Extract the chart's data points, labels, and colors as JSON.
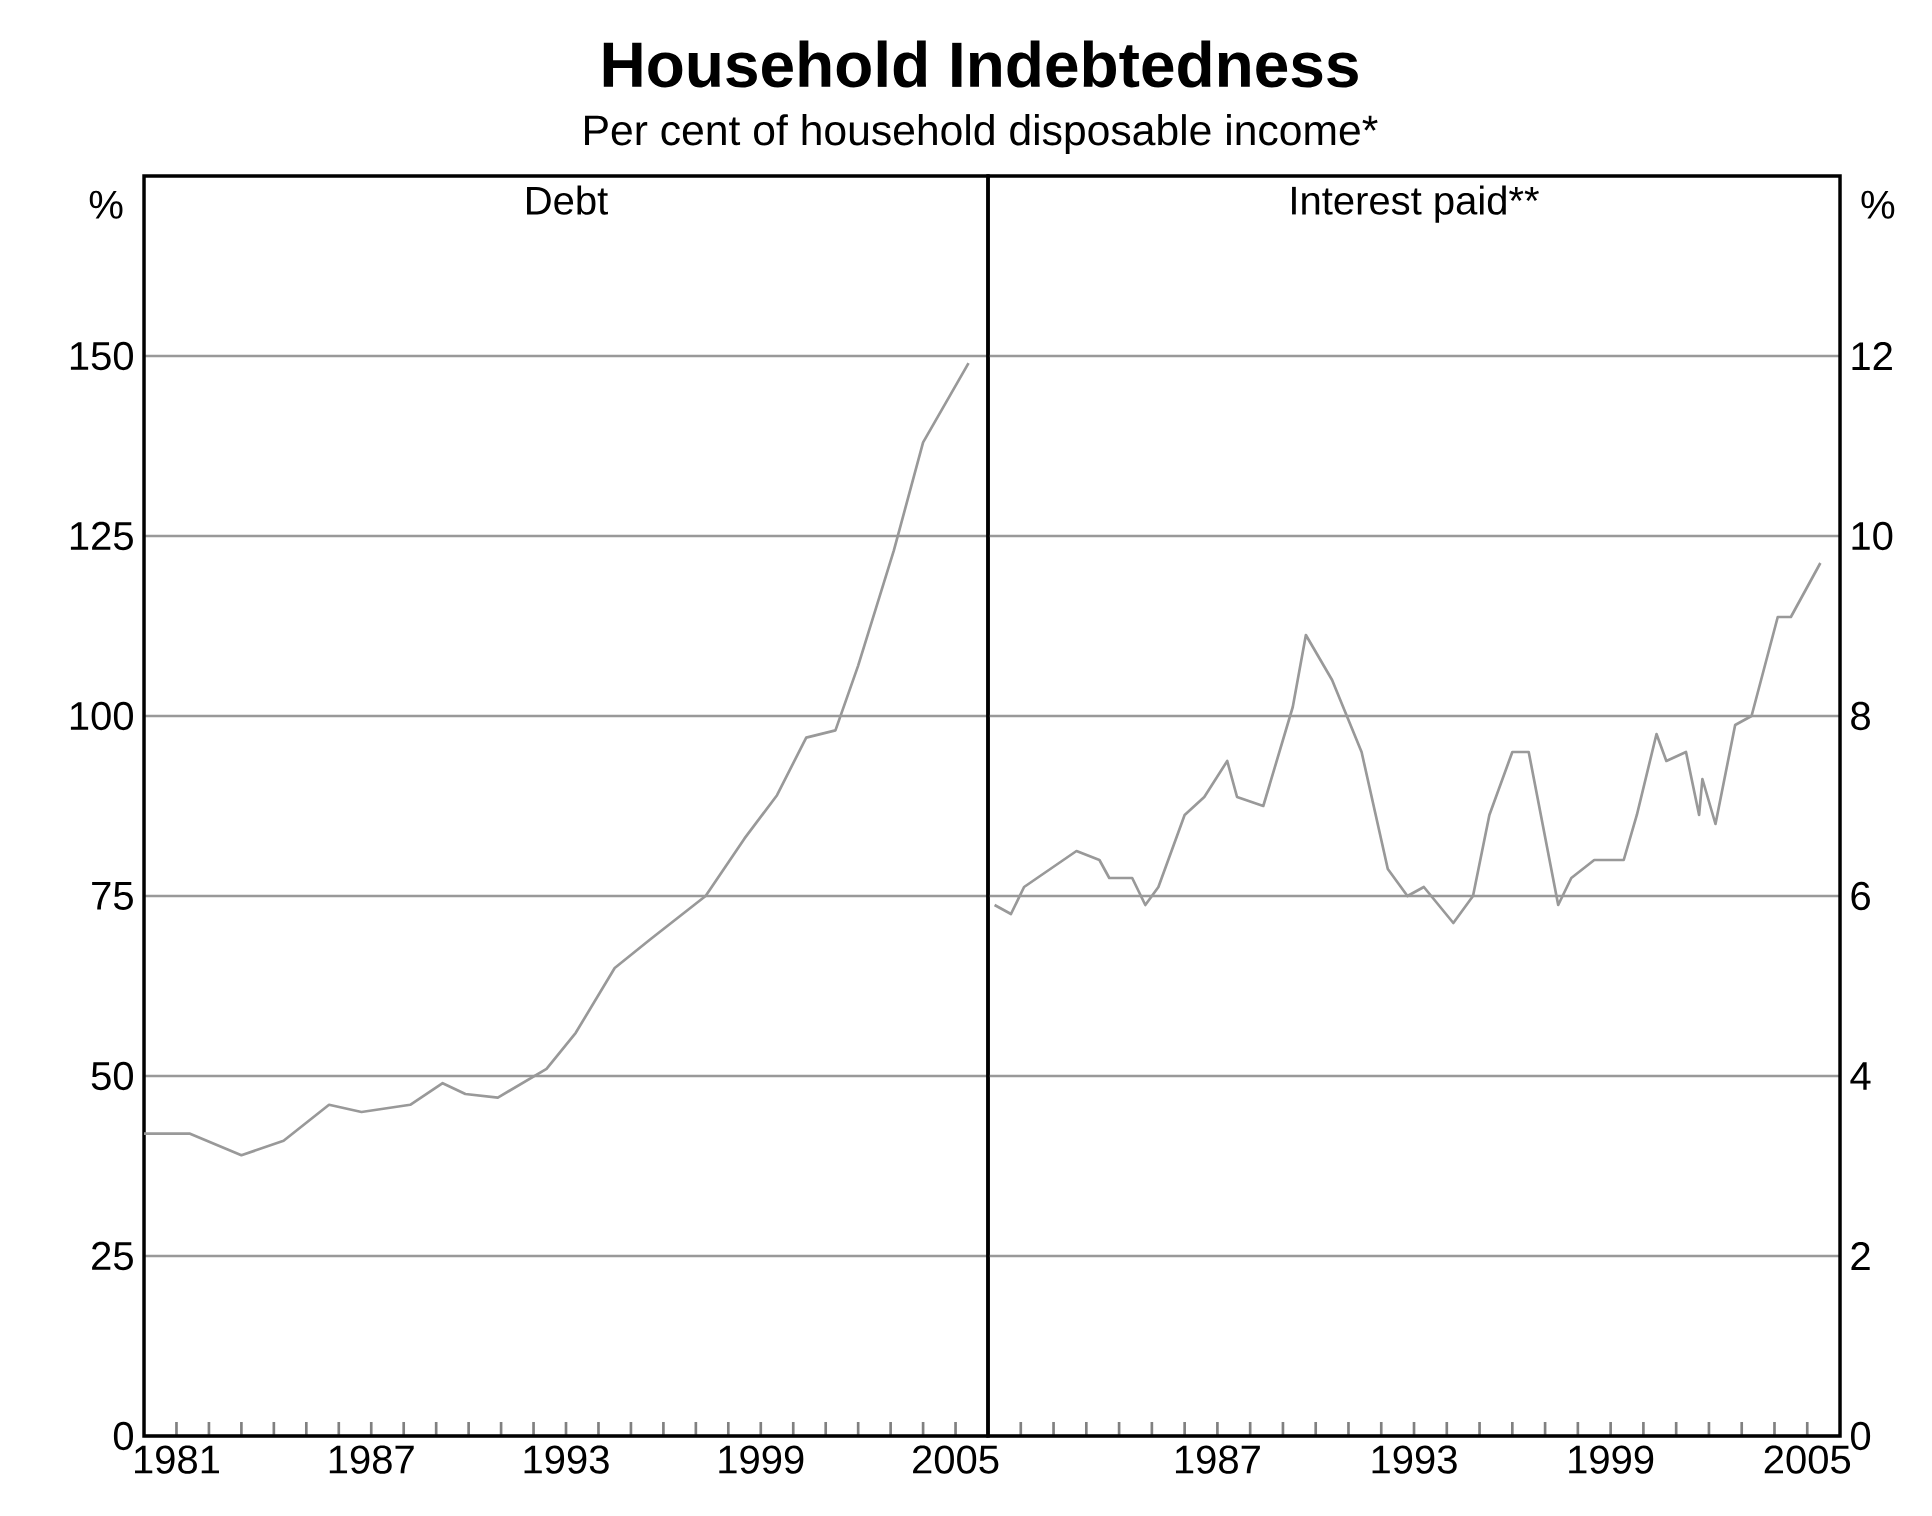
{
  "chart_data": [
    {
      "type": "line",
      "title": "Household Indebtedness",
      "subtitle": "Per cent of household disposable income*",
      "ylabel": "%",
      "xlim": [
        1980,
        2006
      ],
      "xticks": [
        1981,
        {
          "value": 1982,
          "label": null
        },
        {
          "value": 1983,
          "label": null
        },
        {
          "value": 1984,
          "label": null
        },
        {
          "value": 1985,
          "label": null
        },
        {
          "value": 1986,
          "label": null
        },
        1987,
        {
          "value": 1988,
          "label": null
        },
        {
          "value": 1989,
          "label": null
        },
        {
          "value": 1990,
          "label": null
        },
        {
          "value": 1991,
          "label": null
        },
        {
          "value": 1992,
          "label": null
        },
        1993,
        {
          "value": 1994,
          "label": null
        },
        {
          "value": 1995,
          "label": null
        },
        {
          "value": 1996,
          "label": null
        },
        {
          "value": 1997,
          "label": null
        },
        {
          "value": 1998,
          "label": null
        },
        1999,
        {
          "value": 2000,
          "label": null
        },
        {
          "value": 2001,
          "label": null
        },
        {
          "value": 2002,
          "label": null
        },
        {
          "value": 2003,
          "label": null
        },
        {
          "value": 2004,
          "label": null
        },
        2005
      ],
      "ylim": [
        0,
        175
      ],
      "yticks": [
        0,
        25,
        50,
        75,
        100,
        125,
        150
      ],
      "grid": "y",
      "series": [
        {
          "name": "Debt",
          "color": "#999999",
          "x": [
            1980.0,
            1981.4,
            1983.0,
            1984.3,
            1985.7,
            1986.7,
            1988.2,
            1989.2,
            1989.9,
            1990.9,
            1992.4,
            1993.3,
            1994.5,
            1995.6,
            1997.3,
            1998.5,
            1999.5,
            2000.4,
            2001.3,
            2002.0,
            2003.1,
            2004.0,
            2005.4
          ],
          "values": [
            42,
            42,
            39,
            41,
            46,
            45,
            46,
            49,
            47.5,
            47,
            51,
            56,
            65,
            69,
            75,
            83,
            89,
            97,
            98,
            107,
            123,
            138,
            149
          ]
        }
      ]
    },
    {
      "type": "line",
      "y2label": "%",
      "xlim": [
        1980,
        2006
      ],
      "xticks": [
        {
          "value": 1981,
          "label": null
        },
        {
          "value": 1982,
          "label": null
        },
        {
          "value": 1983,
          "label": null
        },
        {
          "value": 1984,
          "label": null
        },
        {
          "value": 1985,
          "label": null
        },
        {
          "value": 1986,
          "label": null
        },
        1987,
        {
          "value": 1988,
          "label": null
        },
        {
          "value": 1989,
          "label": null
        },
        {
          "value": 1990,
          "label": null
        },
        {
          "value": 1991,
          "label": null
        },
        {
          "value": 1992,
          "label": null
        },
        1993,
        {
          "value": 1994,
          "label": null
        },
        {
          "value": 1995,
          "label": null
        },
        {
          "value": 1996,
          "label": null
        },
        {
          "value": 1997,
          "label": null
        },
        {
          "value": 1998,
          "label": null
        },
        1999,
        {
          "value": 2000,
          "label": null
        },
        {
          "value": 2001,
          "label": null
        },
        {
          "value": 2002,
          "label": null
        },
        {
          "value": 2003,
          "label": null
        },
        {
          "value": 2004,
          "label": null
        },
        2005
      ],
      "y2lim": [
        0,
        14
      ],
      "y2ticks": [
        0,
        2,
        4,
        6,
        8,
        10,
        12
      ],
      "grid": "y",
      "series": [
        {
          "name": "Interest paid**",
          "color": "#999999",
          "axis": "y2",
          "x": [
            1980.2,
            1980.7,
            1981.1,
            1982.7,
            1983.4,
            1983.7,
            1984.4,
            1984.8,
            1985.2,
            1986.0,
            1986.6,
            1987.3,
            1987.6,
            1988.4,
            1989.3,
            1989.7,
            1990.5,
            1991.4,
            1992.2,
            1992.8,
            1993.3,
            1994.2,
            1994.8,
            1995.3,
            1996.0,
            1996.5,
            1997.4,
            1997.8,
            1998.5,
            1999.4,
            1999.8,
            2000.4,
            2000.7,
            2001.3,
            2001.7,
            2001.8,
            2002.2,
            2002.8,
            2003.3,
            2004.1,
            2004.5,
            2005.4
          ],
          "values": [
            5.9,
            5.8,
            6.1,
            6.5,
            6.4,
            6.2,
            6.2,
            5.9,
            6.1,
            6.9,
            7.1,
            7.5,
            7.1,
            7.0,
            8.1,
            8.9,
            8.4,
            7.6,
            6.3,
            6.0,
            6.1,
            5.7,
            6.0,
            6.9,
            7.6,
            7.6,
            5.9,
            6.2,
            6.4,
            6.4,
            6.9,
            7.8,
            7.5,
            7.6,
            6.9,
            7.3,
            6.8,
            7.9,
            8.0,
            9.1,
            9.1,
            9.7
          ]
        }
      ]
    }
  ]
}
